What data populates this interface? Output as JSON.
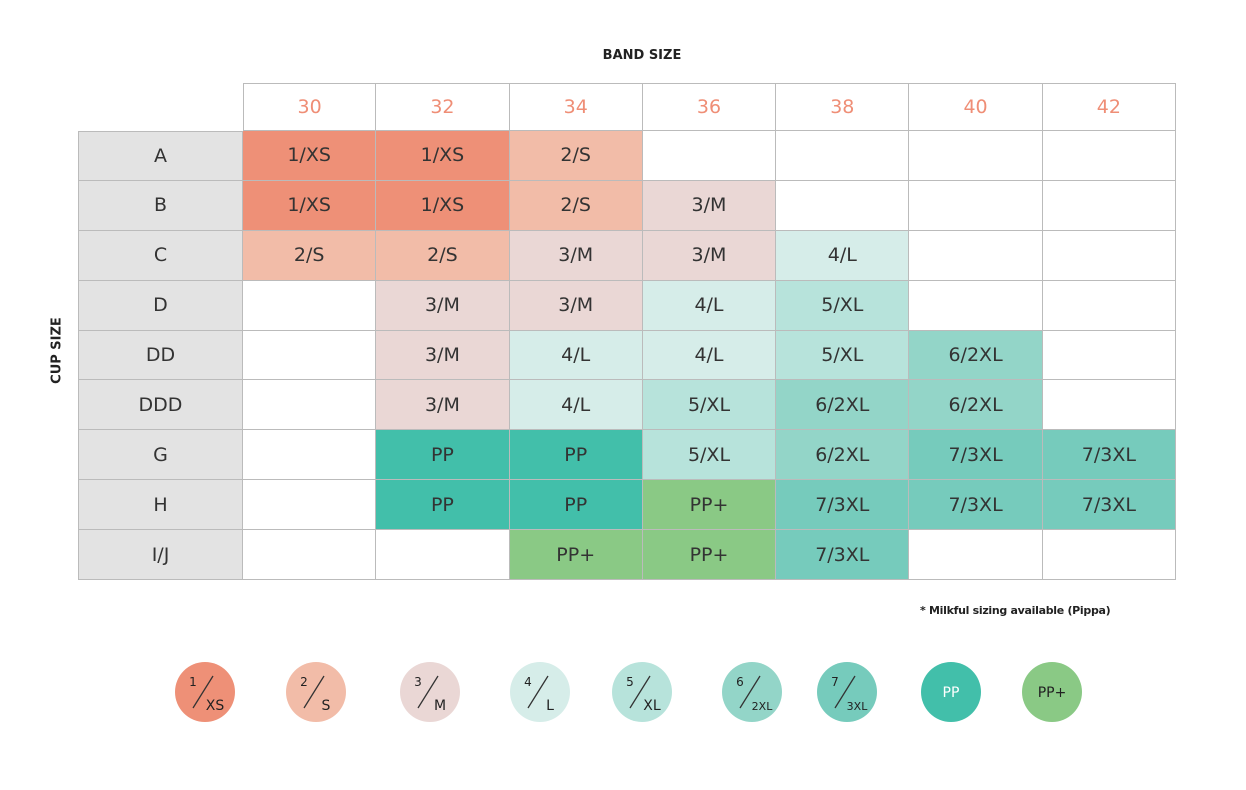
{
  "band_size_label": "BAND SIZE",
  "cup_size_label": "CUP SIZE",
  "table": {
    "columns": [
      "30",
      "32",
      "34",
      "36",
      "38",
      "40",
      "42"
    ],
    "rows": [
      {
        "cup": "A",
        "cells": [
          "1/XS",
          "1/XS",
          "2/S",
          null,
          null,
          null,
          null
        ]
      },
      {
        "cup": "B",
        "cells": [
          "1/XS",
          "1/XS",
          "2/S",
          "3/M",
          null,
          null,
          null
        ]
      },
      {
        "cup": "C",
        "cells": [
          "2/S",
          "2/S",
          "3/M",
          "3/M",
          "4/L",
          null,
          null
        ]
      },
      {
        "cup": "D",
        "cells": [
          null,
          "3/M",
          "3/M",
          "4/L",
          "5/XL",
          null,
          null
        ]
      },
      {
        "cup": "DD",
        "cells": [
          null,
          "3/M",
          "4/L",
          "4/L",
          "5/XL",
          "6/2XL",
          null
        ]
      },
      {
        "cup": "DDD",
        "cells": [
          null,
          "3/M",
          "4/L",
          "5/XL",
          "6/2XL",
          "6/2XL",
          null
        ]
      },
      {
        "cup": "G",
        "cells": [
          null,
          "PP",
          "PP",
          "5/XL",
          "6/2XL",
          "7/3XL",
          "7/3XL"
        ]
      },
      {
        "cup": "H",
        "cells": [
          null,
          "PP",
          "PP",
          "PP+",
          "7/3XL",
          "7/3XL",
          "7/3XL"
        ]
      },
      {
        "cup": "I/J",
        "cells": [
          null,
          null,
          "PP+",
          "PP+",
          "7/3XL",
          null,
          null
        ]
      }
    ]
  },
  "note": "* Milkful sizing available (Pippa)",
  "legend": [
    {
      "top": "1",
      "bottom": "XS",
      "color": "#ee9077"
    },
    {
      "top": "2",
      "bottom": "S",
      "color": "#f2bca8"
    },
    {
      "top": "3",
      "bottom": "M",
      "color": "#ead7d5"
    },
    {
      "top": "4",
      "bottom": "L",
      "color": "#d6ede9"
    },
    {
      "top": "5",
      "bottom": "XL",
      "color": "#b7e3db"
    },
    {
      "top": "6",
      "bottom": "2XL",
      "color": "#93d5c8"
    },
    {
      "top": "7",
      "bottom": "3XL",
      "color": "#76cbbc"
    },
    {
      "label": "PP",
      "color": "#42bfaa"
    },
    {
      "label": "PP+",
      "color": "#8ac985"
    }
  ]
}
